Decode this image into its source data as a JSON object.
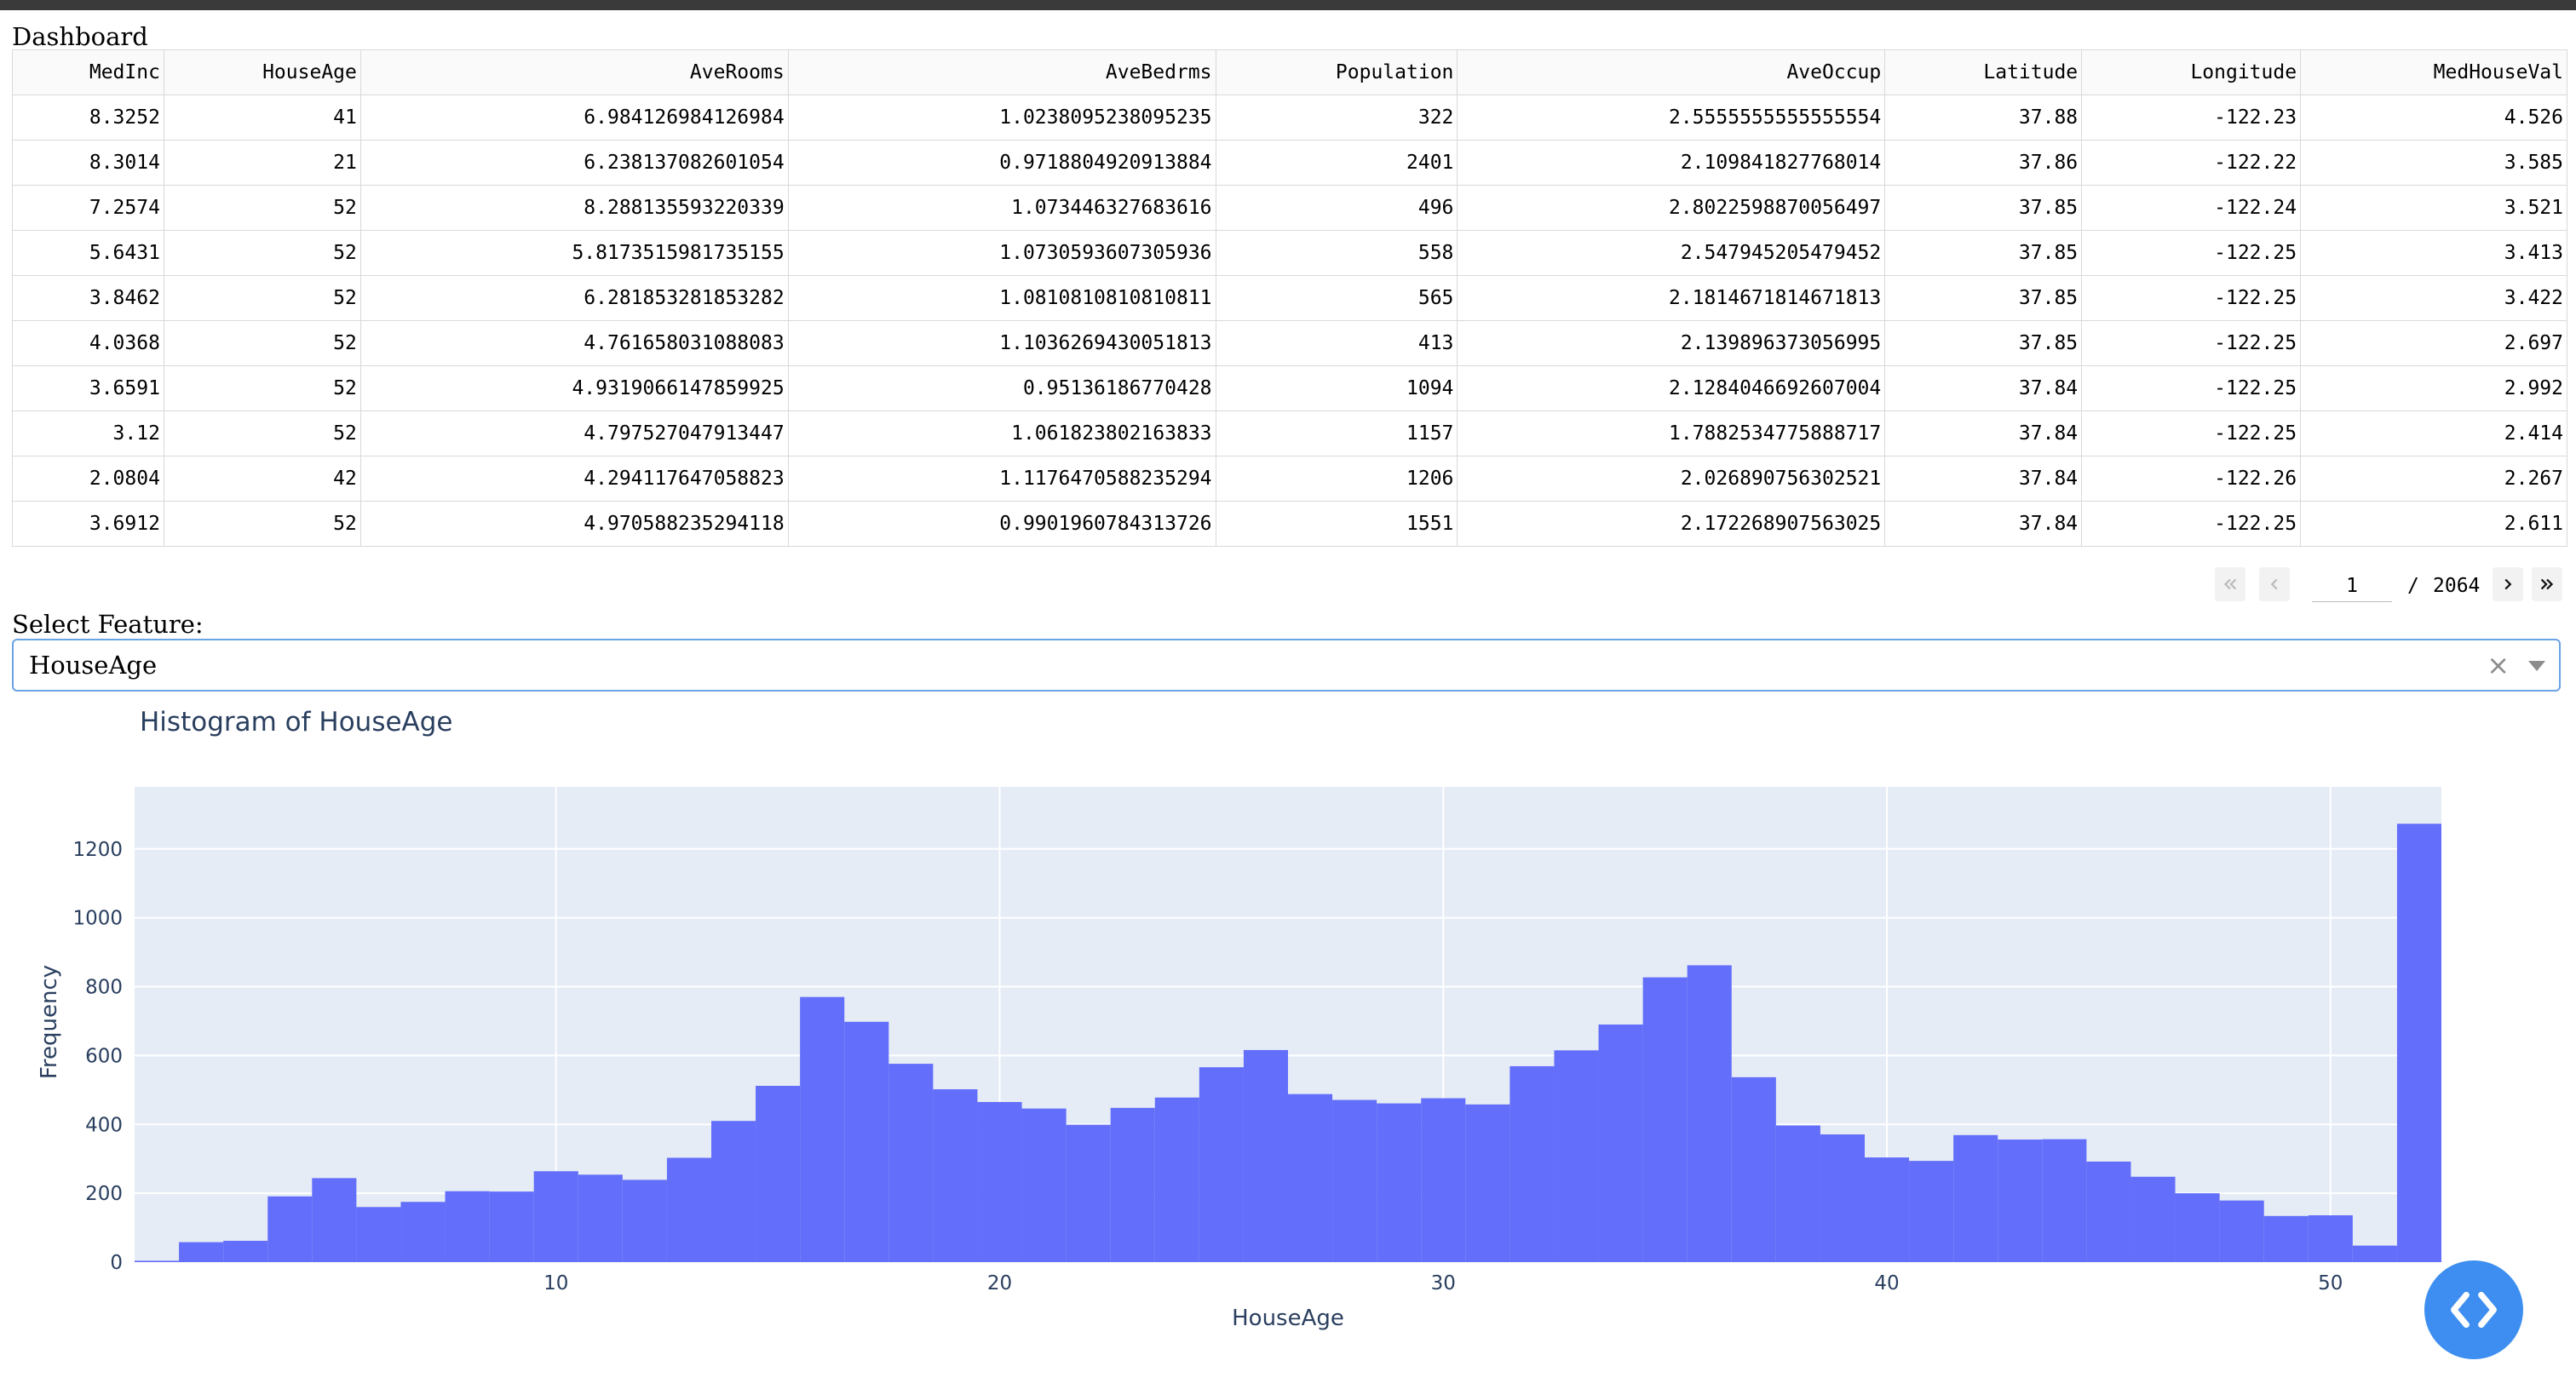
{
  "page": {
    "title": "Dashboard"
  },
  "table": {
    "columns": [
      "MedInc",
      "HouseAge",
      "AveRooms",
      "AveBedrms",
      "Population",
      "AveOccup",
      "Latitude",
      "Longitude",
      "MedHouseVal"
    ],
    "rows": [
      [
        "8.3252",
        "41",
        "6.984126984126984",
        "1.0238095238095235",
        "322",
        "2.5555555555555554",
        "37.88",
        "-122.23",
        "4.526"
      ],
      [
        "8.3014",
        "21",
        "6.238137082601054",
        "0.9718804920913884",
        "2401",
        "2.109841827768014",
        "37.86",
        "-122.22",
        "3.585"
      ],
      [
        "7.2574",
        "52",
        "8.288135593220339",
        "1.073446327683616",
        "496",
        "2.8022598870056497",
        "37.85",
        "-122.24",
        "3.521"
      ],
      [
        "5.6431",
        "52",
        "5.8173515981735155",
        "1.0730593607305936",
        "558",
        "2.547945205479452",
        "37.85",
        "-122.25",
        "3.413"
      ],
      [
        "3.8462",
        "52",
        "6.281853281853282",
        "1.0810810810810811",
        "565",
        "2.1814671814671813",
        "37.85",
        "-122.25",
        "3.422"
      ],
      [
        "4.0368",
        "52",
        "4.761658031088083",
        "1.1036269430051813",
        "413",
        "2.139896373056995",
        "37.85",
        "-122.25",
        "2.697"
      ],
      [
        "3.6591",
        "52",
        "4.9319066147859925",
        "0.95136186770428",
        "1094",
        "2.1284046692607004",
        "37.84",
        "-122.25",
        "2.992"
      ],
      [
        "3.12",
        "52",
        "4.797527047913447",
        "1.061823802163833",
        "1157",
        "1.7882534775888717",
        "37.84",
        "-122.25",
        "2.414"
      ],
      [
        "2.0804",
        "42",
        "4.294117647058823",
        "1.1176470588235294",
        "1206",
        "2.026890756302521",
        "37.84",
        "-122.26",
        "2.267"
      ],
      [
        "3.6912",
        "52",
        "4.970588235294118",
        "0.9901960784313726",
        "1551",
        "2.172268907563025",
        "37.84",
        "-122.25",
        "2.611"
      ]
    ]
  },
  "pagination": {
    "current": "1",
    "separator": "/",
    "total": "2064",
    "icons": [
      "first-page-icon",
      "previous-page-icon",
      "next-page-icon",
      "last-page-icon"
    ]
  },
  "feature_select": {
    "label": "Select Feature:",
    "value": "HouseAge",
    "clear_symbol": "×"
  },
  "colors": {
    "bar": "#636efa",
    "plot_bg": "#e5ecf6",
    "accent": "#3d8ef0"
  },
  "chart_data": {
    "type": "bar",
    "title": "Histogram of HouseAge",
    "xlabel": "HouseAge",
    "ylabel": "Frequency",
    "xlim": [
      0.5,
      52.5
    ],
    "ylim": [
      0,
      1380
    ],
    "xticks": [
      10,
      20,
      30,
      40,
      50
    ],
    "yticks": [
      0,
      200,
      400,
      600,
      800,
      1000,
      1200
    ],
    "grid": true,
    "x": [
      1,
      2,
      3,
      4,
      5,
      6,
      7,
      8,
      9,
      10,
      11,
      12,
      13,
      14,
      15,
      16,
      17,
      18,
      19,
      20,
      21,
      22,
      23,
      24,
      25,
      26,
      27,
      28,
      29,
      30,
      31,
      32,
      33,
      34,
      35,
      36,
      37,
      38,
      39,
      40,
      41,
      42,
      43,
      44,
      45,
      46,
      47,
      48,
      49,
      50,
      51,
      52
    ],
    "values": [
      4,
      58,
      62,
      191,
      244,
      160,
      175,
      206,
      205,
      264,
      254,
      239,
      303,
      410,
      512,
      770,
      698,
      576,
      502,
      465,
      446,
      399,
      448,
      478,
      566,
      616,
      488,
      471,
      461,
      476,
      458,
      569,
      615,
      690,
      827,
      862,
      537,
      397,
      371,
      304,
      294,
      369,
      356,
      357,
      292,
      248,
      200,
      179,
      134,
      136,
      48,
      1273
    ]
  }
}
